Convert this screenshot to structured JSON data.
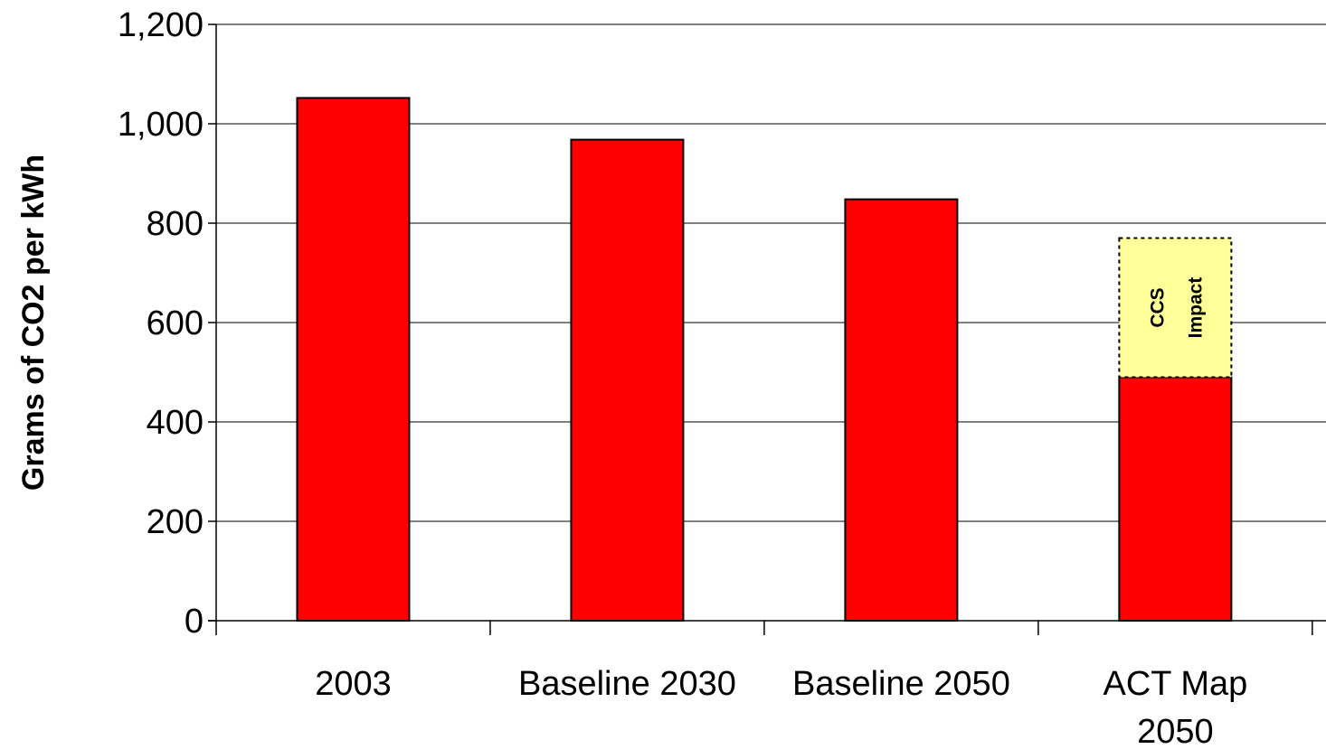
{
  "chart_data": {
    "type": "bar",
    "title": "",
    "xlabel": "",
    "ylabel": "Grams of CO2 per kWh",
    "ylim": [
      0,
      1200
    ],
    "yticks": [
      0,
      200,
      400,
      600,
      800,
      1000,
      1200
    ],
    "ytick_labels": [
      "0",
      "200",
      "400",
      "600",
      "800",
      "1,000",
      "1,200"
    ],
    "grid": true,
    "categories": [
      {
        "lines": [
          "2003"
        ]
      },
      {
        "lines": [
          "Baseline 2030"
        ]
      },
      {
        "lines": [
          "Baseline 2050"
        ]
      },
      {
        "lines": [
          "ACT Map",
          "2050"
        ]
      }
    ],
    "values": [
      1052,
      968,
      848,
      490
    ],
    "ccs_impact": {
      "category_index": 3,
      "bottom": 490,
      "top": 770,
      "label_lines": [
        "CCS",
        "Impact"
      ]
    },
    "colors": {
      "bar": "#ff0000",
      "ccs_fill": "#ffff99",
      "grid": "#000000"
    }
  }
}
